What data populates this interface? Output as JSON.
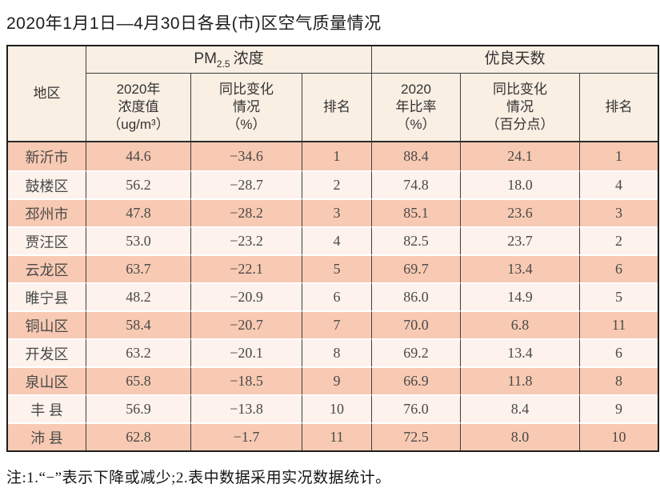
{
  "title": "2020年1月1日—4月30日各县(市)区空气质量情况",
  "table": {
    "region_header": "地区",
    "pm_group": {
      "prefix": "PM",
      "subscript": "2.5",
      "suffix": "浓度"
    },
    "good_group": "优良天数",
    "sub_headers": [
      "2020年\n浓度值\n（ug/m³）",
      "同比变化\n情况\n（%）",
      "排名",
      "2020\n年比率\n（%）",
      "同比变化\n情况\n（百分点）",
      "排名"
    ]
  },
  "chart_data": {
    "type": "table",
    "title": "2020年1月1日—4月30日各县(市)区空气质量情况",
    "column_groups": [
      "PM2.5浓度",
      "优良天数"
    ],
    "columns": [
      "地区",
      "PM2.5 2020年浓度值（ug/m³）",
      "PM2.5 同比变化情况（%）",
      "PM2.5 排名",
      "优良天数 2020年比率（%）",
      "优良天数 同比变化情况（百分点）",
      "优良天数 排名"
    ],
    "rows": [
      [
        "新沂市",
        "44.6",
        "−34.6",
        "1",
        "88.4",
        "24.1",
        "1"
      ],
      [
        "鼓楼区",
        "56.2",
        "−28.7",
        "2",
        "74.8",
        "18.0",
        "4"
      ],
      [
        "邳州市",
        "47.8",
        "−28.2",
        "3",
        "85.1",
        "23.6",
        "3"
      ],
      [
        "贾汪区",
        "53.0",
        "−23.2",
        "4",
        "82.5",
        "23.7",
        "2"
      ],
      [
        "云龙区",
        "63.7",
        "−22.1",
        "5",
        "69.7",
        "13.4",
        "6"
      ],
      [
        "睢宁县",
        "48.2",
        "−20.9",
        "6",
        "86.0",
        "14.9",
        "5"
      ],
      [
        "铜山区",
        "58.4",
        "−20.7",
        "7",
        "70.0",
        "6.8",
        "11"
      ],
      [
        "开发区",
        "63.2",
        "−20.1",
        "8",
        "69.2",
        "13.4",
        "6"
      ],
      [
        "泉山区",
        "65.8",
        "−18.5",
        "9",
        "66.9",
        "11.8",
        "8"
      ],
      [
        "丰 县",
        "56.9",
        "−13.8",
        "10",
        "76.0",
        "8.4",
        "9"
      ],
      [
        "沛 县",
        "62.8",
        "−1.7",
        "11",
        "72.5",
        "8.0",
        "10"
      ]
    ]
  },
  "note": "注:1.“−”表示下降或减少;2.表中数据采用实况数据统计。",
  "colors": {
    "row_odd": "#f8cab3",
    "row_even": "#fdf2ec",
    "header_bg": "#faefe3",
    "outer_border": "#1d1d1d",
    "grid_line": "#3e3e3e"
  }
}
